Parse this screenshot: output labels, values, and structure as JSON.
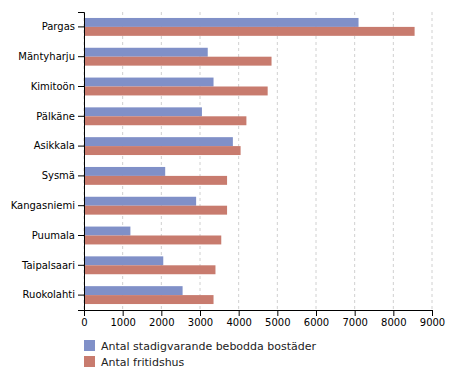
{
  "chart_data": {
    "type": "bar",
    "orientation": "horizontal",
    "categories": [
      "Pargas",
      "Mäntyharju",
      "Kimitoön",
      "Pälkäne",
      "Asikkala",
      "Sysmä",
      "Kangasniemi",
      "Puumala",
      "Taipalsaari",
      "Ruokolahti"
    ],
    "series": [
      {
        "name": "Antal stadigvarande bebodda bostäder",
        "color": "#8090C8",
        "values": [
          7100,
          3200,
          3350,
          3050,
          3850,
          2100,
          2900,
          1200,
          2050,
          2550
        ]
      },
      {
        "name": "Antal fritidshus",
        "color": "#C87B6E",
        "values": [
          8550,
          4850,
          4750,
          4200,
          4050,
          3700,
          3700,
          3550,
          3400,
          3350
        ]
      }
    ],
    "xlim": [
      0,
      9000
    ],
    "xticks": [
      0,
      1000,
      2000,
      3000,
      4000,
      5000,
      6000,
      7000,
      8000,
      9000
    ],
    "grid": true,
    "legend": "bottom"
  }
}
